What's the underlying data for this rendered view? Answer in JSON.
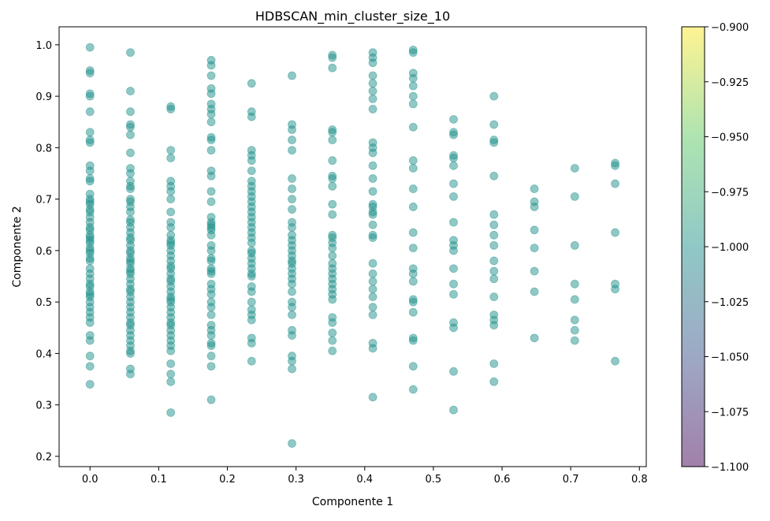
{
  "chart_data": {
    "type": "scatter",
    "title": "HDBSCAN_min_cluster_size_10",
    "xlabel": "Componente 1",
    "ylabel": "Componente 2",
    "xlim": [
      -0.045,
      0.81
    ],
    "ylim": [
      0.18,
      1.035
    ],
    "xticks": [
      0.0,
      0.1,
      0.2,
      0.3,
      0.4,
      0.5,
      0.6,
      0.7,
      0.8
    ],
    "xtick_labels": [
      "0.0",
      "0.1",
      "0.2",
      "0.3",
      "0.4",
      "0.5",
      "0.6",
      "0.7",
      "0.8"
    ],
    "yticks": [
      0.2,
      0.3,
      0.4,
      0.5,
      0.6,
      0.7,
      0.8,
      0.9,
      1.0
    ],
    "ytick_labels": [
      "0.2",
      "0.3",
      "0.4",
      "0.5",
      "0.6",
      "0.7",
      "0.8",
      "0.9",
      "1.0"
    ],
    "grid": false,
    "point_color": "#21918c",
    "point_alpha": 0.5,
    "colorbar": {
      "colormap": "viridis",
      "alpha": 0.5,
      "range": [
        -1.1,
        -0.9
      ],
      "ticks": [
        -0.9,
        -0.925,
        -0.95,
        -0.975,
        -1.0,
        -1.025,
        -1.05,
        -1.075,
        -1.1
      ],
      "tick_labels": [
        "−0.900",
        "−0.925",
        "−0.950",
        "−0.975",
        "−1.000",
        "−1.025",
        "−1.050",
        "−1.075",
        "−1.100"
      ],
      "colors": [
        "#440154",
        "#3b528b",
        "#21918c",
        "#5ec962",
        "#fde725"
      ]
    },
    "columns": [
      {
        "x": 0.0,
        "y": [
          0.995,
          0.95,
          0.945,
          0.905,
          0.9,
          0.87,
          0.83,
          0.815,
          0.81,
          0.765,
          0.755,
          0.74,
          0.735,
          0.71,
          0.7,
          0.695,
          0.69,
          0.68,
          0.675,
          0.665,
          0.655,
          0.645,
          0.64,
          0.63,
          0.625,
          0.62,
          0.615,
          0.605,
          0.6,
          0.595,
          0.585,
          0.58,
          0.565,
          0.555,
          0.545,
          0.535,
          0.53,
          0.52,
          0.515,
          0.51,
          0.5,
          0.49,
          0.48,
          0.47,
          0.46,
          0.435,
          0.425,
          0.395,
          0.375,
          0.34
        ]
      },
      {
        "x": 0.0588,
        "y": [
          0.985,
          0.91,
          0.87,
          0.845,
          0.84,
          0.825,
          0.79,
          0.76,
          0.75,
          0.735,
          0.725,
          0.72,
          0.7,
          0.695,
          0.685,
          0.675,
          0.66,
          0.655,
          0.645,
          0.635,
          0.625,
          0.62,
          0.61,
          0.6,
          0.595,
          0.585,
          0.58,
          0.575,
          0.565,
          0.56,
          0.555,
          0.545,
          0.535,
          0.525,
          0.52,
          0.51,
          0.5,
          0.49,
          0.48,
          0.47,
          0.46,
          0.455,
          0.445,
          0.435,
          0.425,
          0.415,
          0.405,
          0.4,
          0.37,
          0.36
        ]
      },
      {
        "x": 0.1176,
        "y": [
          0.88,
          0.875,
          0.795,
          0.78,
          0.735,
          0.725,
          0.715,
          0.7,
          0.675,
          0.655,
          0.645,
          0.63,
          0.62,
          0.615,
          0.61,
          0.6,
          0.59,
          0.58,
          0.57,
          0.565,
          0.555,
          0.545,
          0.54,
          0.53,
          0.52,
          0.51,
          0.505,
          0.5,
          0.49,
          0.48,
          0.47,
          0.46,
          0.455,
          0.445,
          0.435,
          0.425,
          0.415,
          0.405,
          0.38,
          0.36,
          0.345,
          0.285
        ]
      },
      {
        "x": 0.1765,
        "y": [
          0.97,
          0.96,
          0.94,
          0.915,
          0.905,
          0.885,
          0.875,
          0.865,
          0.85,
          0.82,
          0.815,
          0.795,
          0.755,
          0.745,
          0.715,
          0.695,
          0.665,
          0.655,
          0.65,
          0.645,
          0.64,
          0.63,
          0.61,
          0.6,
          0.585,
          0.58,
          0.565,
          0.56,
          0.555,
          0.535,
          0.525,
          0.515,
          0.5,
          0.49,
          0.475,
          0.455,
          0.445,
          0.435,
          0.42,
          0.415,
          0.395,
          0.375,
          0.31
        ]
      },
      {
        "x": 0.2353,
        "y": [
          0.925,
          0.87,
          0.86,
          0.795,
          0.785,
          0.775,
          0.755,
          0.735,
          0.725,
          0.715,
          0.705,
          0.695,
          0.685,
          0.675,
          0.665,
          0.655,
          0.645,
          0.635,
          0.625,
          0.615,
          0.6,
          0.595,
          0.585,
          0.575,
          0.565,
          0.555,
          0.55,
          0.53,
          0.52,
          0.5,
          0.485,
          0.475,
          0.465,
          0.43,
          0.42,
          0.385
        ]
      },
      {
        "x": 0.2941,
        "y": [
          0.94,
          0.845,
          0.835,
          0.815,
          0.795,
          0.74,
          0.72,
          0.7,
          0.68,
          0.655,
          0.645,
          0.63,
          0.62,
          0.61,
          0.6,
          0.59,
          0.58,
          0.575,
          0.565,
          0.555,
          0.545,
          0.535,
          0.52,
          0.5,
          0.49,
          0.475,
          0.445,
          0.435,
          0.395,
          0.385,
          0.37,
          0.225
        ]
      },
      {
        "x": 0.3529,
        "y": [
          0.98,
          0.975,
          0.955,
          0.835,
          0.83,
          0.815,
          0.775,
          0.745,
          0.74,
          0.725,
          0.69,
          0.67,
          0.63,
          0.625,
          0.615,
          0.605,
          0.59,
          0.575,
          0.565,
          0.555,
          0.545,
          0.535,
          0.525,
          0.515,
          0.505,
          0.47,
          0.46,
          0.44,
          0.425,
          0.405
        ]
      },
      {
        "x": 0.4118,
        "y": [
          0.985,
          0.975,
          0.965,
          0.94,
          0.925,
          0.91,
          0.895,
          0.875,
          0.81,
          0.8,
          0.79,
          0.765,
          0.74,
          0.715,
          0.69,
          0.685,
          0.675,
          0.67,
          0.65,
          0.63,
          0.625,
          0.575,
          0.555,
          0.54,
          0.525,
          0.51,
          0.49,
          0.475,
          0.42,
          0.41,
          0.315
        ]
      },
      {
        "x": 0.4706,
        "y": [
          0.99,
          0.985,
          0.945,
          0.935,
          0.92,
          0.9,
          0.885,
          0.84,
          0.775,
          0.76,
          0.72,
          0.685,
          0.635,
          0.605,
          0.565,
          0.555,
          0.54,
          0.505,
          0.5,
          0.48,
          0.43,
          0.425,
          0.375,
          0.33
        ]
      },
      {
        "x": 0.5294,
        "y": [
          0.855,
          0.83,
          0.825,
          0.785,
          0.78,
          0.765,
          0.73,
          0.705,
          0.655,
          0.62,
          0.61,
          0.6,
          0.565,
          0.535,
          0.515,
          0.46,
          0.45,
          0.365,
          0.29
        ]
      },
      {
        "x": 0.5882,
        "y": [
          0.9,
          0.845,
          0.815,
          0.81,
          0.745,
          0.67,
          0.65,
          0.63,
          0.61,
          0.58,
          0.56,
          0.545,
          0.51,
          0.475,
          0.465,
          0.455,
          0.38,
          0.345
        ]
      },
      {
        "x": 0.6471,
        "y": [
          0.72,
          0.695,
          0.685,
          0.64,
          0.605,
          0.56,
          0.52,
          0.43
        ]
      },
      {
        "x": 0.7059,
        "y": [
          0.76,
          0.705,
          0.61,
          0.535,
          0.505,
          0.465,
          0.445,
          0.425
        ]
      },
      {
        "x": 0.7647,
        "y": [
          0.77,
          0.765,
          0.73,
          0.635,
          0.535,
          0.525,
          0.385
        ]
      }
    ]
  }
}
